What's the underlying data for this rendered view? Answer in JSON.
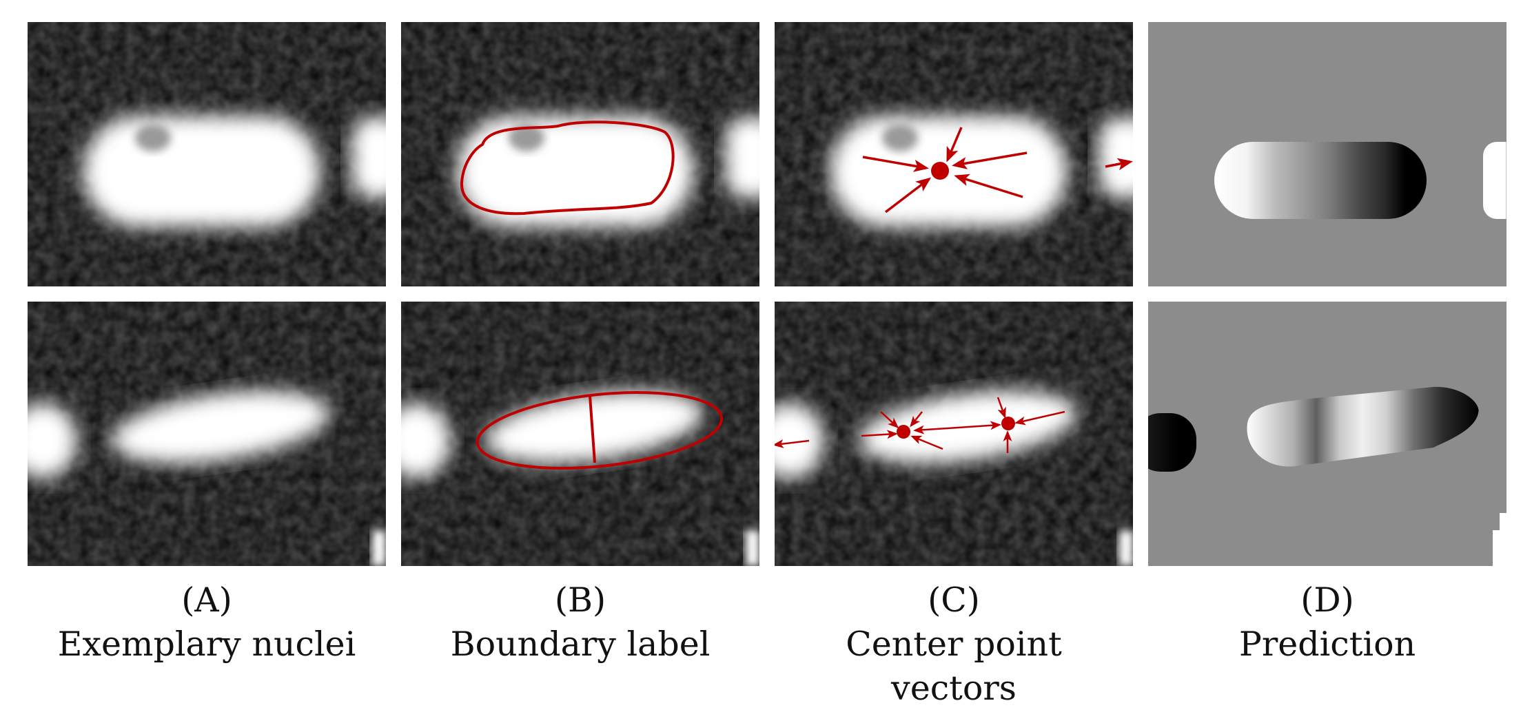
{
  "colors": {
    "annotation": "#c00000",
    "background_dark": "#000000",
    "prediction_background": "#8c8c8c"
  },
  "panels": [
    {
      "letter": "(A)",
      "caption_lines": [
        "Exemplary nuclei"
      ]
    },
    {
      "letter": "(B)",
      "caption_lines": [
        "Boundary label"
      ]
    },
    {
      "letter": "(C)",
      "caption_lines": [
        "Center point",
        "vectors"
      ]
    },
    {
      "letter": "(D)",
      "caption_lines": [
        "Prediction"
      ]
    }
  ]
}
